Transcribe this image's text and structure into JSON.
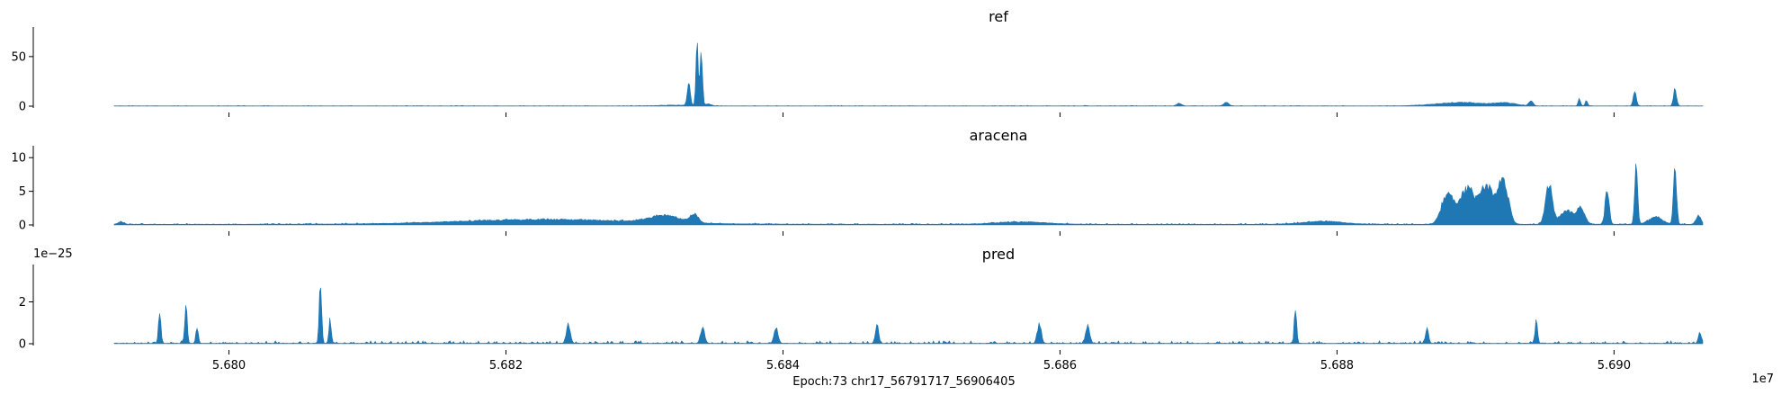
{
  "chart_data": {
    "type": "area",
    "xlabel": "Epoch:73 chr17_56791717_56906405",
    "x_offset_label": "1e7",
    "x_range": [
      56791717,
      56906405
    ],
    "x_ticks": [
      56800000,
      56820000,
      56840000,
      56860000,
      56880000,
      56900000
    ],
    "x_tick_labels": [
      "5.680",
      "5.682",
      "5.684",
      "5.686",
      "5.688",
      "5.690"
    ],
    "color": "#1f77b4",
    "panels": [
      {
        "title": "ref",
        "ylim": [
          0,
          78
        ],
        "y_ticks": [
          0,
          50
        ],
        "y_tick_labels": [
          "0",
          "50"
        ],
        "y_offset_label": "",
        "baseline": 0.3,
        "noise": 0.4,
        "bumps": [
          {
            "x": 56832400,
            "w": 1800,
            "h": 0.8
          },
          {
            "x": 56833200,
            "w": 150,
            "h": 25
          },
          {
            "x": 56833800,
            "w": 120,
            "h": 72
          },
          {
            "x": 56834100,
            "w": 120,
            "h": 66
          },
          {
            "x": 56834600,
            "w": 300,
            "h": 2
          },
          {
            "x": 56868600,
            "w": 250,
            "h": 3
          },
          {
            "x": 56872000,
            "w": 250,
            "h": 4
          },
          {
            "x": 56889000,
            "w": 2500,
            "h": 4
          },
          {
            "x": 56892200,
            "w": 1000,
            "h": 3
          },
          {
            "x": 56894000,
            "w": 200,
            "h": 6
          },
          {
            "x": 56897500,
            "w": 120,
            "h": 8
          },
          {
            "x": 56898000,
            "w": 120,
            "h": 6
          },
          {
            "x": 56901500,
            "w": 150,
            "h": 16
          },
          {
            "x": 56904400,
            "w": 150,
            "h": 20
          }
        ]
      },
      {
        "title": "aracena",
        "ylim": [
          0,
          11.5
        ],
        "y_ticks": [
          0,
          5,
          10
        ],
        "y_tick_labels": [
          "0",
          "5",
          "10"
        ],
        "y_offset_label": "",
        "baseline": 0.1,
        "noise": 0.15,
        "bumps": [
          {
            "x": 56792200,
            "w": 300,
            "h": 0.4
          },
          {
            "x": 56823000,
            "w": 9000,
            "h": 0.8
          },
          {
            "x": 56831500,
            "w": 1500,
            "h": 1.2
          },
          {
            "x": 56833600,
            "w": 400,
            "h": 1.4
          },
          {
            "x": 56857200,
            "w": 2500,
            "h": 0.4
          },
          {
            "x": 56879000,
            "w": 2000,
            "h": 0.5
          },
          {
            "x": 56888000,
            "w": 600,
            "h": 5.5
          },
          {
            "x": 56889400,
            "w": 700,
            "h": 6.0
          },
          {
            "x": 56890800,
            "w": 700,
            "h": 6.5
          },
          {
            "x": 56892000,
            "w": 500,
            "h": 7.5
          },
          {
            "x": 56895300,
            "w": 350,
            "h": 6.5
          },
          {
            "x": 56896600,
            "w": 700,
            "h": 2.2
          },
          {
            "x": 56897600,
            "w": 400,
            "h": 2.5
          },
          {
            "x": 56899500,
            "w": 200,
            "h": 6.0
          },
          {
            "x": 56901600,
            "w": 150,
            "h": 9.5
          },
          {
            "x": 56903000,
            "w": 700,
            "h": 1.2
          },
          {
            "x": 56904400,
            "w": 150,
            "h": 11.0
          },
          {
            "x": 56906100,
            "w": 250,
            "h": 1.5
          }
        ]
      },
      {
        "title": "pred",
        "ylim": [
          0,
          3.7
        ],
        "y_ticks": [
          0,
          2
        ],
        "y_tick_labels": [
          "0",
          "2"
        ],
        "y_offset_label": "1e−25",
        "baseline": 0.02,
        "noise": 0.12,
        "bumps": [
          {
            "x": 56795000,
            "w": 120,
            "h": 1.7
          },
          {
            "x": 56796900,
            "w": 120,
            "h": 2.3
          },
          {
            "x": 56797700,
            "w": 120,
            "h": 0.9
          },
          {
            "x": 56806600,
            "w": 120,
            "h": 3.6
          },
          {
            "x": 56807300,
            "w": 120,
            "h": 1.3
          },
          {
            "x": 56824500,
            "w": 200,
            "h": 1.0
          },
          {
            "x": 56834200,
            "w": 200,
            "h": 0.9
          },
          {
            "x": 56839500,
            "w": 200,
            "h": 0.8
          },
          {
            "x": 56846800,
            "w": 150,
            "h": 1.0
          },
          {
            "x": 56858500,
            "w": 200,
            "h": 1.0
          },
          {
            "x": 56862000,
            "w": 200,
            "h": 1.0
          },
          {
            "x": 56877000,
            "w": 120,
            "h": 2.0
          },
          {
            "x": 56886500,
            "w": 150,
            "h": 0.9
          },
          {
            "x": 56894400,
            "w": 120,
            "h": 1.3
          },
          {
            "x": 56906200,
            "w": 150,
            "h": 0.6
          }
        ]
      }
    ]
  }
}
